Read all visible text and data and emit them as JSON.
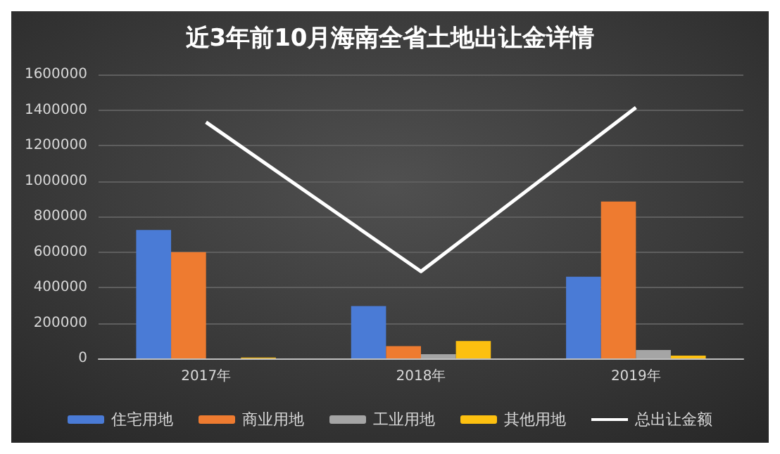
{
  "chart_data": {
    "type": "bar",
    "title": "近3年前10月海南全省土地出让金详情",
    "categories": [
      "2017年",
      "2018年",
      "2019年"
    ],
    "series": [
      {
        "name": "住宅用地",
        "color": "#4a7bd6",
        "values": [
          724000,
          295000,
          460000
        ]
      },
      {
        "name": "商业用地",
        "color": "#ee7b30",
        "values": [
          599000,
          69000,
          884000
        ]
      },
      {
        "name": "工业用地",
        "color": "#a5a5a5",
        "values": [
          null,
          24000,
          48000
        ]
      },
      {
        "name": "其他用地",
        "color": "#fdc010",
        "values": [
          5000,
          98000,
          16000
        ]
      },
      {
        "name": "总出让金额",
        "color": "#ffffff",
        "type": "line",
        "values": [
          1331000,
          490000,
          1414000
        ]
      }
    ],
    "ylim": [
      0,
      1600000
    ],
    "yticks": [
      0,
      200000,
      400000,
      600000,
      800000,
      1000000,
      1200000,
      1400000,
      1600000
    ],
    "grid": "y",
    "legend": "bottom",
    "marker": "none"
  }
}
